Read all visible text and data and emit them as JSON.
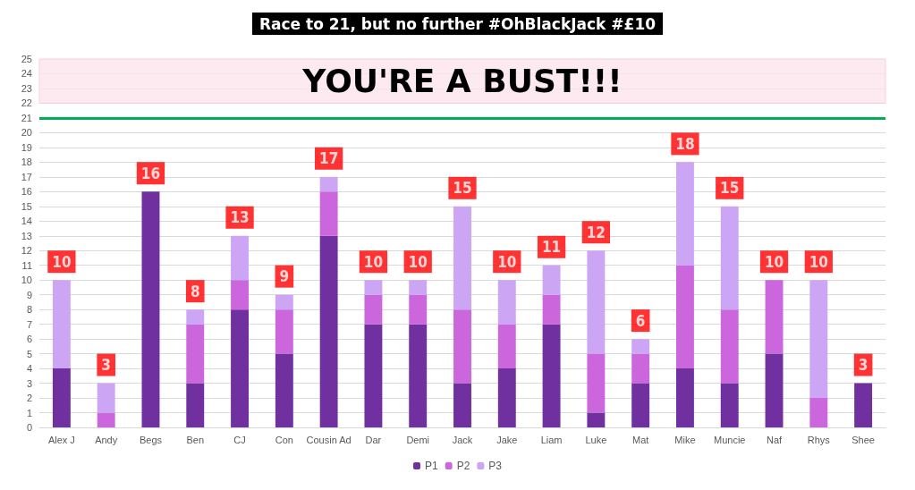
{
  "chart_data": {
    "type": "bar",
    "title": "Race to 21, but no further #OhBlackJack #£10",
    "categories": [
      "Alex J",
      "Andy",
      "Begs",
      "Ben",
      "CJ",
      "Con",
      "Cousin Ad",
      "Dar",
      "Demi",
      "Jack",
      "Jake",
      "Liam",
      "Luke",
      "Mat",
      "Mike",
      "Muncie",
      "Naf",
      "Rhys",
      "Shee"
    ],
    "stacked": true,
    "series": [
      {
        "name": "P1",
        "color": "#7030a0",
        "values": [
          4,
          0,
          16,
          3,
          8,
          5,
          13,
          7,
          7,
          3,
          4,
          7,
          1,
          3,
          4,
          3,
          5,
          0,
          3
        ]
      },
      {
        "name": "P2",
        "color": "#cc66dd",
        "values": [
          0,
          1,
          0,
          4,
          2,
          3,
          3,
          2,
          2,
          5,
          3,
          2,
          4,
          2,
          7,
          5,
          5,
          2,
          0
        ]
      },
      {
        "name": "P3",
        "color": "#cca6f5",
        "values": [
          6,
          2,
          0,
          1,
          3,
          1,
          1,
          1,
          1,
          7,
          3,
          2,
          7,
          1,
          7,
          7,
          0,
          8,
          0
        ]
      }
    ],
    "totals": [
      "10",
      "3",
      "16",
      "8",
      "13",
      "9",
      "17",
      "10",
      "10",
      "15",
      "10",
      "11",
      "12",
      "6",
      "18",
      "15",
      "10",
      "10",
      "3"
    ],
    "ylim": [
      0,
      25
    ],
    "yticks": [
      0,
      1,
      2,
      3,
      4,
      5,
      6,
      7,
      8,
      9,
      10,
      11,
      12,
      13,
      14,
      15,
      16,
      17,
      18,
      19,
      20,
      21,
      22,
      23,
      24,
      25
    ],
    "ref_lines": [
      {
        "axis": "y",
        "value": 21,
        "color": "#00b050",
        "line_style": "solid"
      }
    ],
    "bands": [
      {
        "axis": "y",
        "from": 22,
        "to": 25,
        "label": "YOU'RE A BUST!!!",
        "color": "#fde4ec"
      }
    ],
    "grid": "y",
    "legend": "bottom"
  }
}
